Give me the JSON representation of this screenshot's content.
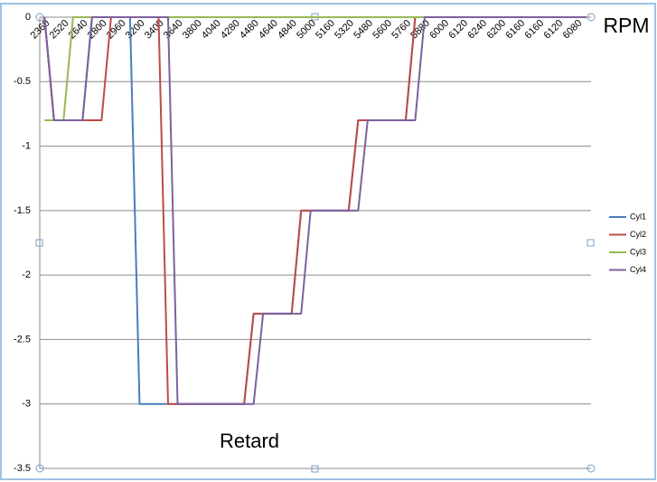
{
  "chart_data": {
    "type": "line",
    "xlabel": "RPM",
    "ylabel": "Retard",
    "categories": [
      "2360",
      null,
      "2520",
      null,
      "2640",
      null,
      "2800",
      null,
      "2960",
      null,
      "3200",
      null,
      "3400",
      null,
      "3640",
      null,
      "3800",
      null,
      "4040",
      null,
      "4280",
      null,
      "4480",
      null,
      "4640",
      null,
      "4840",
      null,
      "5000",
      null,
      "5160",
      null,
      "5320",
      null,
      "5480",
      null,
      "5600",
      null,
      "5760",
      null,
      "5880",
      null,
      "6000",
      null,
      "6120",
      null,
      "6240",
      null,
      "6200",
      null,
      "6160",
      null,
      "6160",
      null,
      "6120",
      null,
      "6080",
      null
    ],
    "series": [
      {
        "name": "Cyl1",
        "color": "#4a7ebb",
        "values": [
          0,
          -0.8,
          -0.8,
          -0.8,
          -0.8,
          0,
          0,
          0,
          0,
          0,
          -3,
          -3,
          -3,
          -3,
          -3,
          -3,
          -3,
          -3,
          -3,
          -3,
          -3,
          -3,
          -2.3,
          -2.3,
          -2.3,
          -2.3,
          -2.3,
          -1.5,
          -1.5,
          -1.5,
          -1.5,
          -1.5,
          -1.5,
          -0.8,
          -0.8,
          -0.8,
          -0.8,
          -0.8,
          -0.8,
          0,
          0,
          0,
          0,
          0,
          0,
          0,
          0,
          0,
          0,
          0,
          0,
          0,
          0,
          0,
          0,
          0,
          0,
          0
        ]
      },
      {
        "name": "Cyl2",
        "color": "#be4b48",
        "values": [
          0,
          -0.8,
          -0.8,
          -0.8,
          -0.8,
          -0.8,
          -0.8,
          0,
          0,
          0,
          0,
          0,
          0,
          -3,
          -3,
          -3,
          -3,
          -3,
          -3,
          -3,
          -3,
          -3,
          -2.3,
          -2.3,
          -2.3,
          -2.3,
          -2.3,
          -1.5,
          -1.5,
          -1.5,
          -1.5,
          -1.5,
          -1.5,
          -0.8,
          -0.8,
          -0.8,
          -0.8,
          -0.8,
          -0.8,
          0,
          0,
          0,
          0,
          0,
          0,
          0,
          0,
          0,
          0,
          0,
          0,
          0,
          0,
          0,
          0,
          0,
          0,
          0
        ]
      },
      {
        "name": "Cyl3",
        "color": "#98b954",
        "values": [
          -0.8,
          -0.8,
          -0.8,
          0,
          0,
          0,
          0,
          0,
          0,
          0,
          0,
          0,
          0,
          0,
          0,
          0,
          0,
          0,
          0,
          0,
          0,
          0,
          0,
          0,
          0,
          0,
          0,
          0,
          0,
          0,
          0,
          0,
          0,
          0,
          0,
          0,
          0,
          0,
          0,
          0,
          0,
          0,
          0,
          0,
          0,
          0,
          0,
          0,
          0,
          0,
          0,
          0,
          0,
          0,
          0,
          0,
          0,
          0
        ]
      },
      {
        "name": "Cyl4",
        "color": "#7d60a0",
        "values": [
          0,
          -0.8,
          -0.8,
          -0.8,
          -0.8,
          0,
          0,
          0,
          0,
          0,
          0,
          0,
          0,
          0,
          -3,
          -3,
          -3,
          -3,
          -3,
          -3,
          -3,
          -3,
          -3,
          -2.3,
          -2.3,
          -2.3,
          -2.3,
          -2.3,
          -1.5,
          -1.5,
          -1.5,
          -1.5,
          -1.5,
          -1.5,
          -0.8,
          -0.8,
          -0.8,
          -0.8,
          -0.8,
          -0.8,
          0,
          0,
          0,
          0,
          0,
          0,
          0,
          0,
          0,
          0,
          0,
          0,
          0,
          0,
          0,
          0,
          0,
          0
        ]
      }
    ],
    "ylim": [
      -3.5,
      0
    ],
    "yticks": [
      0,
      -0.5,
      -1,
      -1.5,
      -2,
      -2.5,
      -3,
      -3.5
    ],
    "grid": true,
    "legend": "right"
  }
}
